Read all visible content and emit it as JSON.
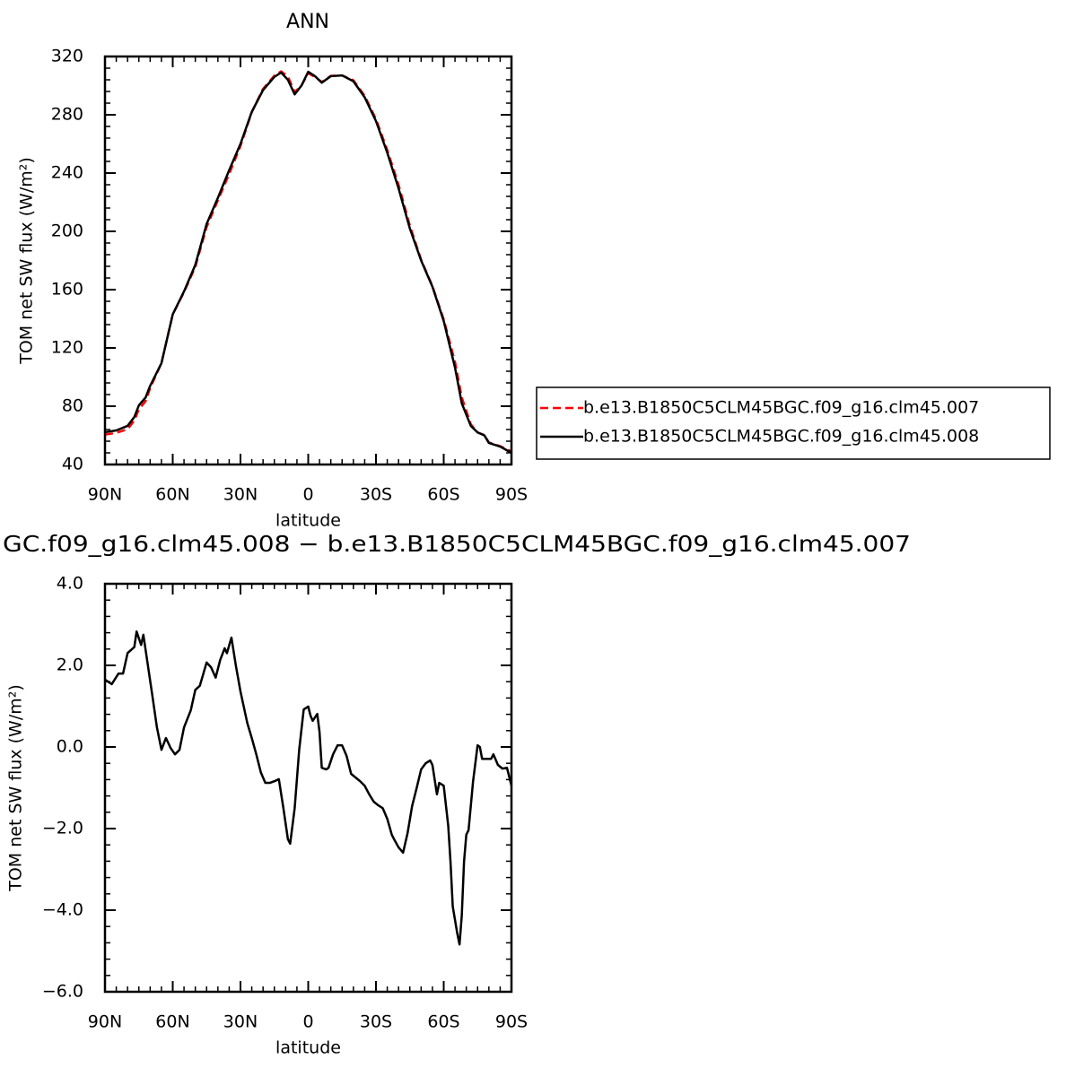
{
  "chart_data": [
    {
      "type": "line",
      "title": "ANN",
      "xlabel": "latitude",
      "ylabel": "TOM net SW flux (W/m²)",
      "x": [
        90,
        85,
        80,
        77,
        75,
        72,
        70,
        65,
        60,
        55,
        50,
        45,
        40,
        35,
        30,
        25,
        20,
        15,
        12,
        9,
        6,
        3,
        0,
        -3,
        -6,
        -10,
        -15,
        -20,
        -25,
        -30,
        -35,
        -40,
        -45,
        -50,
        -55,
        -60,
        -65,
        -68,
        -72,
        -75,
        -78,
        -80,
        -85,
        -90
      ],
      "series": [
        {
          "name": "b.e13.B1850C5CLM45BGC.f09_g16.clm45.007",
          "color": "#ff0000",
          "dashed": true,
          "values": [
            60.5,
            61.7,
            64.2,
            70.2,
            77.9,
            83.5,
            92.4,
            109.6,
            143,
            158.3,
            175.6,
            203,
            221.3,
            239.4,
            258.6,
            281.8,
            297.8,
            306.8,
            309.8,
            306.3,
            295.5,
            300.1,
            308.5,
            305.9,
            302.5,
            306.7,
            307,
            303.7,
            293,
            277,
            255.8,
            232,
            204,
            180.5,
            162.4,
            139.5,
            110.4,
            86,
            67.6,
            62,
            60.2,
            55.1,
            52.6,
            49
          ]
        },
        {
          "name": "b.e13.B1850C5CLM45BGC.f09_g16.clm45.008",
          "color": "#000000",
          "dashed": false,
          "values": [
            62.2,
            63.4,
            66.5,
            72.6,
            80.6,
            86,
            94,
            109.5,
            143,
            158.8,
            177,
            205,
            223,
            242,
            260,
            282,
            297,
            306,
            309,
            304,
            294,
            300,
            309.5,
            306.5,
            302,
            306.5,
            307,
            303,
            292,
            275.7,
            254,
            229.5,
            202,
            180,
            162,
            138.5,
            106.5,
            82,
            66.5,
            62,
            60,
            54.8,
            52.3,
            48
          ]
        }
      ],
      "legend": "right",
      "xlim": [
        90,
        -90
      ],
      "xticks": [
        {
          "value": 90,
          "label": "90N"
        },
        {
          "value": 60,
          "label": "60N"
        },
        {
          "value": 30,
          "label": "30N"
        },
        0,
        {
          "value": -30,
          "label": "30S"
        },
        {
          "value": -60,
          "label": "60S"
        },
        {
          "value": -90,
          "label": "90S"
        }
      ],
      "ylim": [
        40,
        320
      ],
      "yticks": [
        40,
        80,
        120,
        160,
        200,
        240,
        280,
        320
      ]
    },
    {
      "type": "line",
      "title": "GC.f09_g16.clm45.008 − b.e13.B1850C5CLM45BGC.f09_g16.clm45.007",
      "xlabel": "latitude",
      "ylabel": "TOM net SW flux (W/m²)",
      "x": [
        90,
        87,
        84,
        82,
        80,
        77,
        76,
        74,
        73,
        71,
        69,
        67,
        65,
        63,
        61,
        59,
        57,
        55,
        52,
        50,
        48,
        45,
        43,
        41,
        39,
        37,
        36,
        34,
        32,
        30,
        27,
        25,
        23,
        21,
        19,
        17,
        15,
        13,
        11,
        9,
        8,
        6,
        4,
        2,
        0,
        -1,
        -2,
        -4,
        -5,
        -6,
        -8,
        -9,
        -11,
        -13,
        -15,
        -17,
        -19,
        -21,
        -23,
        -25,
        -27,
        -29,
        -31,
        -33,
        -35,
        -37,
        -38,
        -40,
        -42,
        -44,
        -46,
        -48,
        -50,
        -52,
        -54,
        -55,
        -57,
        -58,
        -60,
        -62,
        -63,
        -64,
        -66,
        -67,
        -68,
        -69,
        -70,
        -71,
        -73,
        -75,
        -76,
        -77,
        -79,
        -81,
        -82,
        -84,
        -86,
        -88,
        -90
      ],
      "values": [
        1.65,
        1.54,
        1.8,
        1.8,
        2.3,
        2.45,
        2.83,
        2.5,
        2.75,
        2.0,
        1.25,
        0.48,
        -0.07,
        0.22,
        -0.02,
        -0.18,
        -0.07,
        0.48,
        0.9,
        1.4,
        1.5,
        2.07,
        1.95,
        1.7,
        2.13,
        2.42,
        2.3,
        2.68,
        1.98,
        1.36,
        0.59,
        0.22,
        -0.18,
        -0.62,
        -0.88,
        -0.88,
        -0.84,
        -0.79,
        -1.5,
        -2.26,
        -2.37,
        -1.5,
        -0.07,
        0.92,
        0.99,
        0.77,
        0.64,
        0.81,
        0.37,
        -0.51,
        -0.55,
        -0.51,
        -0.18,
        0.04,
        0.04,
        -0.22,
        -0.66,
        -0.75,
        -0.84,
        -0.95,
        -1.16,
        -1.34,
        -1.43,
        -1.5,
        -1.76,
        -2.15,
        -2.26,
        -2.46,
        -2.59,
        -2.11,
        -1.45,
        -1.01,
        -0.55,
        -0.4,
        -0.33,
        -0.44,
        -1.16,
        -0.88,
        -0.95,
        -1.93,
        -2.81,
        -3.91,
        -4.57,
        -4.84,
        -4.13,
        -2.81,
        -2.15,
        -2.04,
        -0.84,
        0.04,
        0.0,
        -0.29,
        -0.29,
        -0.29,
        -0.18,
        -0.44,
        -0.53,
        -0.51,
        -0.95
      ],
      "color": "#000000",
      "xlim": [
        90,
        -90
      ],
      "xticks": [
        {
          "value": 90,
          "label": "90N"
        },
        {
          "value": 60,
          "label": "60N"
        },
        {
          "value": 30,
          "label": "30N"
        },
        0,
        {
          "value": -30,
          "label": "30S"
        },
        {
          "value": -60,
          "label": "60S"
        },
        {
          "value": -90,
          "label": "90S"
        }
      ],
      "ylim": [
        -6,
        4
      ],
      "yticks": [
        {
          "value": -6,
          "label": "−6.0"
        },
        {
          "value": -4,
          "label": "−4.0"
        },
        {
          "value": -2,
          "label": "−2.0"
        },
        {
          "value": 0,
          "label": "0.0"
        },
        {
          "value": 2,
          "label": "2.0"
        },
        {
          "value": 4,
          "label": "4.0"
        }
      ]
    }
  ]
}
